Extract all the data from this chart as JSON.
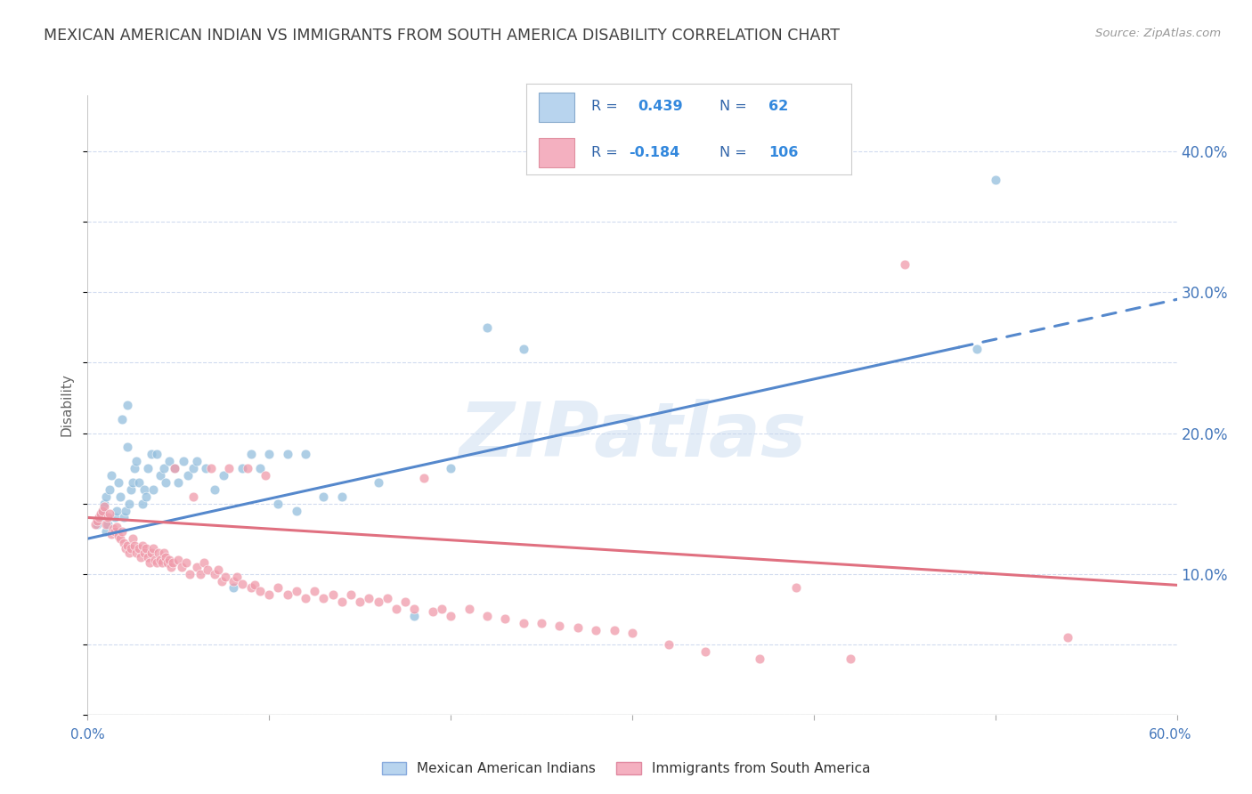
{
  "title": "MEXICAN AMERICAN INDIAN VS IMMIGRANTS FROM SOUTH AMERICA DISABILITY CORRELATION CHART",
  "source": "Source: ZipAtlas.com",
  "ylabel": "Disability",
  "ylabel_right_ticks": [
    "10.0%",
    "20.0%",
    "30.0%",
    "40.0%"
  ],
  "ylabel_right_vals": [
    0.1,
    0.2,
    0.3,
    0.4
  ],
  "xlim": [
    0.0,
    0.6
  ],
  "ylim": [
    0.0,
    0.44
  ],
  "series1_color": "#93bedd",
  "series2_color": "#f09aaa",
  "line1_color": "#5588cc",
  "line2_color": "#e07080",
  "line1_solid_end_x": 0.48,
  "line1_y_at_0": 0.125,
  "line1_y_at_60": 0.295,
  "line2_y_at_0": 0.14,
  "line2_y_at_60": 0.092,
  "watermark": "ZIPatlas",
  "background_color": "#ffffff",
  "grid_color": "#ccd8ee",
  "title_color": "#404040",
  "legend1_face": "#b8d4ee",
  "legend2_face": "#f4b0c0",
  "legend_text_color": "#3366aa",
  "legend_val_color": "#3388dd",
  "series1_x": [
    0.005,
    0.007,
    0.008,
    0.009,
    0.01,
    0.01,
    0.011,
    0.012,
    0.013,
    0.015,
    0.016,
    0.017,
    0.018,
    0.019,
    0.02,
    0.021,
    0.022,
    0.022,
    0.023,
    0.024,
    0.025,
    0.026,
    0.027,
    0.028,
    0.03,
    0.031,
    0.032,
    0.033,
    0.035,
    0.036,
    0.038,
    0.04,
    0.042,
    0.043,
    0.045,
    0.048,
    0.05,
    0.053,
    0.055,
    0.058,
    0.06,
    0.065,
    0.07,
    0.075,
    0.08,
    0.085,
    0.09,
    0.095,
    0.1,
    0.105,
    0.11,
    0.115,
    0.12,
    0.13,
    0.14,
    0.16,
    0.18,
    0.2,
    0.22,
    0.24,
    0.49,
    0.5
  ],
  "series1_y": [
    0.135,
    0.14,
    0.145,
    0.15,
    0.13,
    0.155,
    0.135,
    0.16,
    0.17,
    0.14,
    0.145,
    0.165,
    0.155,
    0.21,
    0.14,
    0.145,
    0.19,
    0.22,
    0.15,
    0.16,
    0.165,
    0.175,
    0.18,
    0.165,
    0.15,
    0.16,
    0.155,
    0.175,
    0.185,
    0.16,
    0.185,
    0.17,
    0.175,
    0.165,
    0.18,
    0.175,
    0.165,
    0.18,
    0.17,
    0.175,
    0.18,
    0.175,
    0.16,
    0.17,
    0.09,
    0.175,
    0.185,
    0.175,
    0.185,
    0.15,
    0.185,
    0.145,
    0.185,
    0.155,
    0.155,
    0.165,
    0.07,
    0.175,
    0.275,
    0.26,
    0.26,
    0.38
  ],
  "series2_x": [
    0.004,
    0.005,
    0.006,
    0.007,
    0.008,
    0.009,
    0.01,
    0.011,
    0.012,
    0.013,
    0.014,
    0.015,
    0.016,
    0.017,
    0.018,
    0.019,
    0.02,
    0.021,
    0.022,
    0.023,
    0.024,
    0.025,
    0.026,
    0.027,
    0.028,
    0.029,
    0.03,
    0.031,
    0.032,
    0.033,
    0.034,
    0.035,
    0.036,
    0.037,
    0.038,
    0.039,
    0.04,
    0.041,
    0.042,
    0.043,
    0.044,
    0.045,
    0.046,
    0.047,
    0.048,
    0.05,
    0.052,
    0.054,
    0.056,
    0.058,
    0.06,
    0.062,
    0.064,
    0.066,
    0.068,
    0.07,
    0.072,
    0.074,
    0.076,
    0.078,
    0.08,
    0.082,
    0.085,
    0.088,
    0.09,
    0.092,
    0.095,
    0.098,
    0.1,
    0.105,
    0.11,
    0.115,
    0.12,
    0.125,
    0.13,
    0.135,
    0.14,
    0.145,
    0.15,
    0.155,
    0.16,
    0.165,
    0.17,
    0.175,
    0.18,
    0.185,
    0.19,
    0.195,
    0.2,
    0.21,
    0.22,
    0.23,
    0.24,
    0.25,
    0.26,
    0.27,
    0.28,
    0.29,
    0.3,
    0.32,
    0.34,
    0.37,
    0.39,
    0.42,
    0.45,
    0.54
  ],
  "series2_y": [
    0.135,
    0.138,
    0.14,
    0.143,
    0.145,
    0.148,
    0.135,
    0.14,
    0.143,
    0.128,
    0.132,
    0.13,
    0.133,
    0.127,
    0.125,
    0.13,
    0.122,
    0.118,
    0.12,
    0.115,
    0.118,
    0.125,
    0.12,
    0.115,
    0.118,
    0.112,
    0.12,
    0.115,
    0.118,
    0.112,
    0.108,
    0.115,
    0.118,
    0.11,
    0.108,
    0.115,
    0.11,
    0.108,
    0.115,
    0.112,
    0.108,
    0.11,
    0.105,
    0.108,
    0.175,
    0.11,
    0.105,
    0.108,
    0.1,
    0.155,
    0.105,
    0.1,
    0.108,
    0.103,
    0.175,
    0.1,
    0.103,
    0.095,
    0.098,
    0.175,
    0.095,
    0.098,
    0.093,
    0.175,
    0.09,
    0.092,
    0.088,
    0.17,
    0.085,
    0.09,
    0.085,
    0.088,
    0.083,
    0.088,
    0.083,
    0.085,
    0.08,
    0.085,
    0.08,
    0.083,
    0.08,
    0.083,
    0.075,
    0.08,
    0.075,
    0.168,
    0.073,
    0.075,
    0.07,
    0.075,
    0.07,
    0.068,
    0.065,
    0.065,
    0.063,
    0.062,
    0.06,
    0.06,
    0.058,
    0.05,
    0.045,
    0.04,
    0.09,
    0.04,
    0.32,
    0.055
  ],
  "bottom_legend": [
    {
      "label": "Mexican American Indians",
      "color": "#b8d4ee",
      "edge": "#88aadd"
    },
    {
      "label": "Immigrants from South America",
      "color": "#f4b0c0",
      "edge": "#e088a0"
    }
  ]
}
